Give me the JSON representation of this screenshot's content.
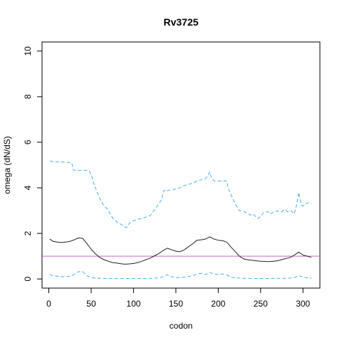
{
  "chart_data": {
    "type": "line",
    "title": "Rv3725",
    "xlabel": "codon",
    "ylabel": "omega (dN/dS)",
    "xlim": [
      -8,
      320
    ],
    "ylim": [
      -0.4,
      10.4
    ],
    "x_ticks": [
      0,
      50,
      100,
      150,
      200,
      250,
      300
    ],
    "y_ticks": [
      0,
      2,
      4,
      6,
      8,
      10
    ],
    "grid": false,
    "legend": "none",
    "reference_line": {
      "y": 1,
      "color": "#c26bc2"
    },
    "series": [
      {
        "role": "upper",
        "color": "#4aaee6",
        "dash": "dashed",
        "x": [
          1,
          5,
          12,
          20,
          27,
          29,
          33,
          40,
          47,
          50,
          53,
          56,
          60,
          65,
          70,
          73,
          76,
          79,
          82,
          85,
          88,
          91,
          93,
          95,
          98,
          100,
          105,
          110,
          115,
          118,
          120,
          125,
          130,
          133,
          136,
          138,
          142,
          146,
          150,
          155,
          160,
          165,
          170,
          175,
          180,
          185,
          188,
          190,
          192,
          195,
          200,
          205,
          210,
          212,
          215,
          220,
          225,
          230,
          235,
          238,
          241,
          244,
          247,
          250,
          253,
          256,
          259,
          262,
          265,
          270,
          275,
          278,
          282,
          286,
          289,
          291,
          293,
          295,
          298,
          300,
          303,
          306,
          310
        ],
        "y": [
          5.17,
          5.15,
          5.14,
          5.13,
          5.1,
          4.78,
          4.77,
          4.77,
          4.77,
          4.6,
          4.2,
          3.9,
          3.55,
          3.2,
          3.05,
          2.8,
          2.65,
          2.55,
          2.45,
          2.4,
          2.35,
          2.25,
          2.3,
          2.45,
          2.5,
          2.55,
          2.62,
          2.65,
          2.72,
          2.75,
          2.8,
          3.05,
          3.3,
          3.5,
          3.9,
          3.85,
          3.9,
          3.9,
          3.95,
          4.0,
          4.1,
          4.15,
          4.2,
          4.3,
          4.35,
          4.4,
          4.55,
          4.7,
          4.45,
          4.3,
          4.3,
          4.3,
          4.3,
          3.95,
          3.7,
          3.3,
          3.0,
          2.95,
          2.9,
          2.8,
          2.85,
          2.75,
          2.65,
          2.75,
          2.9,
          2.95,
          2.95,
          2.85,
          2.95,
          2.98,
          2.95,
          3.05,
          2.95,
          3.0,
          2.85,
          3.0,
          3.35,
          3.8,
          3.25,
          3.2,
          3.3,
          3.35,
          3.3
        ]
      },
      {
        "role": "estimate",
        "color": "#222222",
        "dash": "solid",
        "x": [
          1,
          5,
          10,
          15,
          20,
          25,
          30,
          35,
          40,
          45,
          50,
          55,
          60,
          65,
          70,
          75,
          80,
          85,
          90,
          95,
          100,
          105,
          110,
          115,
          120,
          125,
          130,
          135,
          140,
          145,
          150,
          155,
          160,
          165,
          170,
          175,
          180,
          185,
          190,
          195,
          200,
          205,
          210,
          215,
          220,
          225,
          230,
          235,
          240,
          245,
          250,
          255,
          260,
          265,
          270,
          275,
          280,
          285,
          290,
          295,
          300,
          305,
          310
        ],
        "y": [
          1.75,
          1.65,
          1.62,
          1.6,
          1.62,
          1.65,
          1.72,
          1.8,
          1.78,
          1.55,
          1.3,
          1.1,
          0.95,
          0.85,
          0.78,
          0.72,
          0.7,
          0.67,
          0.65,
          0.66,
          0.68,
          0.72,
          0.78,
          0.85,
          0.92,
          1.02,
          1.12,
          1.25,
          1.35,
          1.28,
          1.22,
          1.2,
          1.28,
          1.42,
          1.55,
          1.7,
          1.72,
          1.75,
          1.85,
          1.75,
          1.7,
          1.68,
          1.62,
          1.4,
          1.2,
          1.0,
          0.88,
          0.84,
          0.82,
          0.8,
          0.78,
          0.77,
          0.76,
          0.78,
          0.8,
          0.85,
          0.9,
          0.95,
          1.05,
          1.18,
          1.05,
          1.0,
          0.95
        ]
      },
      {
        "role": "lower",
        "color": "#4aaee6",
        "dash": "dashed",
        "x": [
          1,
          5,
          10,
          15,
          20,
          25,
          30,
          35,
          40,
          45,
          50,
          55,
          60,
          70,
          80,
          90,
          100,
          110,
          120,
          130,
          135,
          140,
          145,
          150,
          160,
          170,
          175,
          180,
          185,
          190,
          195,
          200,
          205,
          210,
          215,
          220,
          230,
          240,
          250,
          260,
          270,
          280,
          285,
          290,
          295,
          300,
          305,
          310
        ],
        "y": [
          0.2,
          0.15,
          0.12,
          0.1,
          0.1,
          0.12,
          0.2,
          0.32,
          0.32,
          0.15,
          0.06,
          0.04,
          0.03,
          0.02,
          0.02,
          0.02,
          0.02,
          0.02,
          0.03,
          0.05,
          0.1,
          0.18,
          0.1,
          0.06,
          0.08,
          0.15,
          0.22,
          0.24,
          0.2,
          0.28,
          0.22,
          0.2,
          0.22,
          0.18,
          0.08,
          0.05,
          0.03,
          0.02,
          0.02,
          0.02,
          0.03,
          0.03,
          0.04,
          0.06,
          0.15,
          0.08,
          0.05,
          0.04
        ]
      }
    ]
  }
}
